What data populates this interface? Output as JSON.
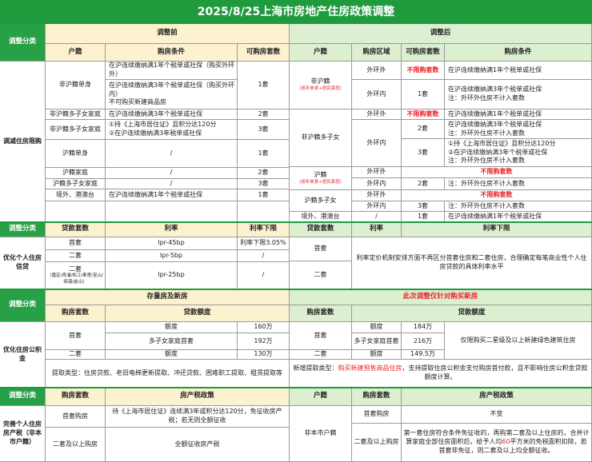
{
  "title": "2025/8/25上海市房地产住房政策调整",
  "colors": {
    "title_bg": "#1f9a3c",
    "category_bg": "#27a046",
    "before_header_bg": "#fdf2cf",
    "after_header_bg": "#dcefd0",
    "highlight": "#e8262b"
  },
  "s1": {
    "cat_header": "调整分类",
    "category": "调减住房限购",
    "before": {
      "title": "调整前",
      "headers": [
        "户籍",
        "购房条件",
        "可购房套数"
      ],
      "rows": [
        {
          "hukou": "非沪籍单身",
          "cond": [
            "在沪连续缴纳满1年个税单或社保（购买外环外）",
            "在沪连续缴纳满3年个税单或社保（购买外环内）",
            "不可购买新建商品房"
          ],
          "count": "1套"
        },
        {
          "hukou": "非沪籍多子女家庭",
          "cond": [
            "在沪连续缴纳满3年个税单或社保"
          ],
          "count": "2套"
        },
        {
          "hukou": "非沪籍多子女家庭",
          "cond": [
            "①持《上海市居住证》且积分达120分",
            "②在沪连续缴纳满3年税单或社保"
          ],
          "count": "3套"
        },
        {
          "hukou": "沪籍单身",
          "cond": [
            "/"
          ],
          "count": "1套"
        },
        {
          "hukou": "沪籍家庭",
          "cond": [
            "/"
          ],
          "count": "2套"
        },
        {
          "hukou": "沪籍多子女家庭",
          "cond": [
            "/"
          ],
          "count": "3套"
        },
        {
          "hukou": "境外、港澳台",
          "cond": [
            "在沪连续缴纳满1年个税单或社保"
          ],
          "count": "1套"
        }
      ]
    },
    "after": {
      "title": "调整后",
      "headers": [
        "户籍",
        "购房区域",
        "可购房套数",
        "购房条件"
      ],
      "outer": "外环外",
      "inner": "外环内",
      "unlimited": "不限购套数",
      "note_outer": "注：外环外住房不计入套数",
      "cond_1y": "在沪连续缴纳满1年个税单或社保",
      "cond_3y": "在沪连续缴纳满3年个税单或社保",
      "cond_3a": "①持《上海市居住证》且积分达120分",
      "cond_3b": "②在沪连续缴纳满3年个税单或社保",
      "groups": [
        {
          "hukou": "非沪籍",
          "note": "（成年单身+居民家庭）",
          "inner_count": "1套"
        },
        {
          "hukou": "非沪籍多子女",
          "counts": [
            "2套",
            "3套"
          ]
        },
        {
          "hukou": "沪籍",
          "note": "（成年单身+居民家庭）",
          "inner_count": "2套"
        },
        {
          "hukou": "沪籍多子女",
          "inner_count": "3套"
        },
        {
          "hukou": "境外、港澳台",
          "region": "/",
          "count": "1套"
        }
      ]
    }
  },
  "s2": {
    "cat_header": "调整分类",
    "category": "优化个人住房信贷",
    "before": {
      "headers": [
        "贷款套数",
        "利率",
        "利率下限"
      ],
      "rows": [
        {
          "count": "首套",
          "rate": "lpr-45bp",
          "floor": "利率下限3.05%"
        },
        {
          "count": "二套",
          "rate": "lpr-5bp",
          "floor": "/"
        },
        {
          "count": "二套",
          "count_note": "（嘉定/青浦/松江/奉贤/宝山/临港/金山）",
          "rate": "lpr-25bp",
          "floor": "/"
        }
      ]
    },
    "after": {
      "headers": [
        "贷款套数",
        "利率",
        "利率下限"
      ],
      "rows": [
        "首套",
        "二套"
      ],
      "text": "利率定价机制安排方面不再区分首套住房和二套住房，合理确定每笔商业性个人住房贷款的具体利率水平"
    }
  },
  "s3": {
    "cat_header": "调整分类",
    "category": "优化住房公积金",
    "before": {
      "title": "存量房及新房",
      "headers": [
        "购房套数",
        "贷款额度"
      ],
      "first": "首套",
      "second": "二套",
      "quota": "额度",
      "multi": "多子女家庭首套",
      "values": [
        "160万",
        "192万",
        "130万"
      ],
      "withdraw": "提取类型：住房贷款、老旧电梯更新提取、冲还贷款、困难职工提取、租赁提取等"
    },
    "after": {
      "title": "此次调整仅针对购买新房",
      "headers": [
        "购房套数",
        "贷款额度"
      ],
      "first": "首套",
      "second": "二套",
      "quota": "额度",
      "multi": "多子女家庭首套",
      "values": [
        "184万",
        "216万",
        "149.5万"
      ],
      "limit": "仅限购买二星级及以上新建绿色建筑住房",
      "withdraw_prefix": "新增提取类型：",
      "withdraw_highlight": "购买新建预售商品住房",
      "withdraw_rest": "，支持提取住房公积金支付购房首付款，且不影响住房公积金贷款额度计算。"
    }
  },
  "s4": {
    "cat_header": "调整分类",
    "category": "完善个人住房房产税（非本市户籍）",
    "before": {
      "headers": [
        "购房套数",
        "房产税政策"
      ],
      "rows": [
        {
          "count": "首套购房",
          "policy": "持《上海市居住证》连续满3年或积分达120分，免征收房产税；若无则全额征收"
        },
        {
          "count": "二套及以上购房",
          "policy": "全额征收房产税"
        }
      ]
    },
    "after": {
      "headers": [
        "户籍",
        "购房套数",
        "房产税政策"
      ],
      "hukou": "非本市户籍",
      "rows": [
        {
          "count": "首套购房",
          "policy": "不变"
        },
        {
          "count": "二套及以上购房",
          "policy_a": "第一套住房符合条件免征收的，再购第二套及以上住房的，合并计算家庭全部住房面积后，给予人均",
          "policy_hl": "60",
          "policy_b": "平方米的免税面积扣除，若首套非免征，则二套及以上均全额征收。"
        }
      ]
    }
  }
}
